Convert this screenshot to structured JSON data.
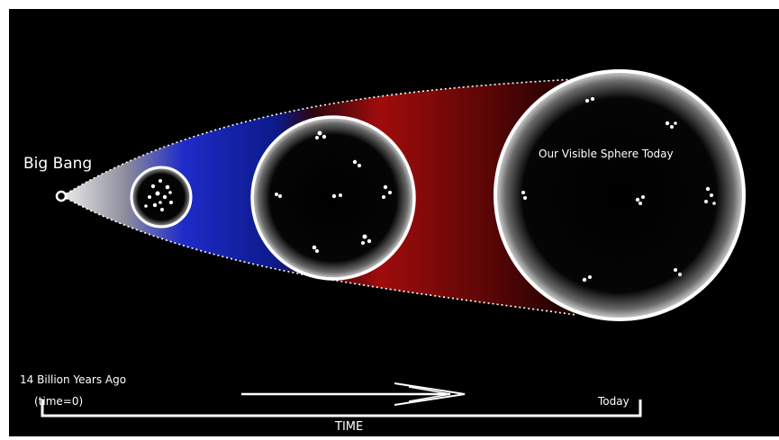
{
  "labels": {
    "big_bang": "Big Bang",
    "visible_sphere": "Our Visible Sphere Today",
    "start_time": "14 Billion Years Ago",
    "time_zero": "(time=0)",
    "today": "Today",
    "axis": "TIME"
  },
  "colors": {
    "background": "#000000",
    "early_expansion": "#1a2fd6",
    "late_expansion": "#9c0a0a",
    "sphere_border": "#ffffff",
    "text": "#ffffff"
  },
  "spheres": [
    {
      "name": "early-universe",
      "galaxy_clusters": 12
    },
    {
      "name": "middle-universe",
      "galaxy_clusters": 7
    },
    {
      "name": "visible-sphere-today",
      "galaxy_clusters": 7
    }
  ]
}
